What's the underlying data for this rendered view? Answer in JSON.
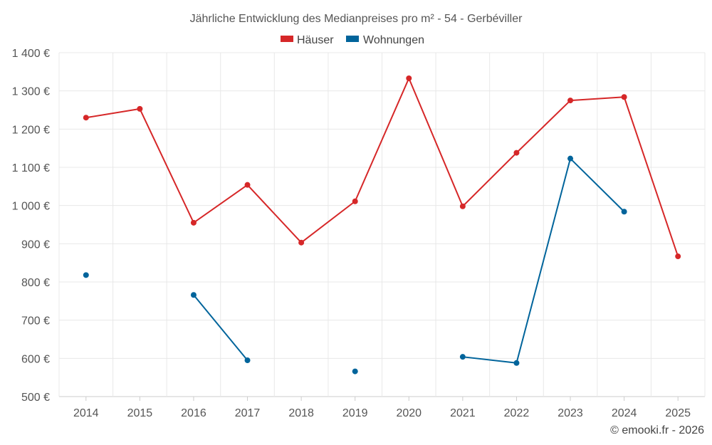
{
  "chart_data": {
    "type": "line",
    "title": "Jährliche Entwicklung des Medianpreises pro m² - 54 - Gerbéviller",
    "categories": [
      "2014",
      "2015",
      "2016",
      "2017",
      "2018",
      "2019",
      "2020",
      "2021",
      "2022",
      "2023",
      "2024",
      "2025"
    ],
    "ylim": [
      500,
      1400
    ],
    "yticks": [
      500,
      600,
      700,
      800,
      900,
      1000,
      1100,
      1200,
      1300,
      1400
    ],
    "ytick_labels": [
      "500 €",
      "600 €",
      "700 €",
      "800 €",
      "900 €",
      "1 000 €",
      "1 100 €",
      "1 200 €",
      "1 300 €",
      "1 400 €"
    ],
    "grid": true,
    "legend_position": "top-center",
    "series": [
      {
        "name": "Häuser",
        "color": "#d62728",
        "values": [
          1230,
          1253,
          955,
          1054,
          903,
          1011,
          1333,
          998,
          1138,
          1275,
          1284,
          867
        ]
      },
      {
        "name": "Wohnungen",
        "color": "#00649b",
        "values": [
          818,
          null,
          766,
          595,
          null,
          566,
          null,
          604,
          588,
          1123,
          984,
          null
        ]
      }
    ]
  },
  "credit": "© emooki.fr - 2026"
}
